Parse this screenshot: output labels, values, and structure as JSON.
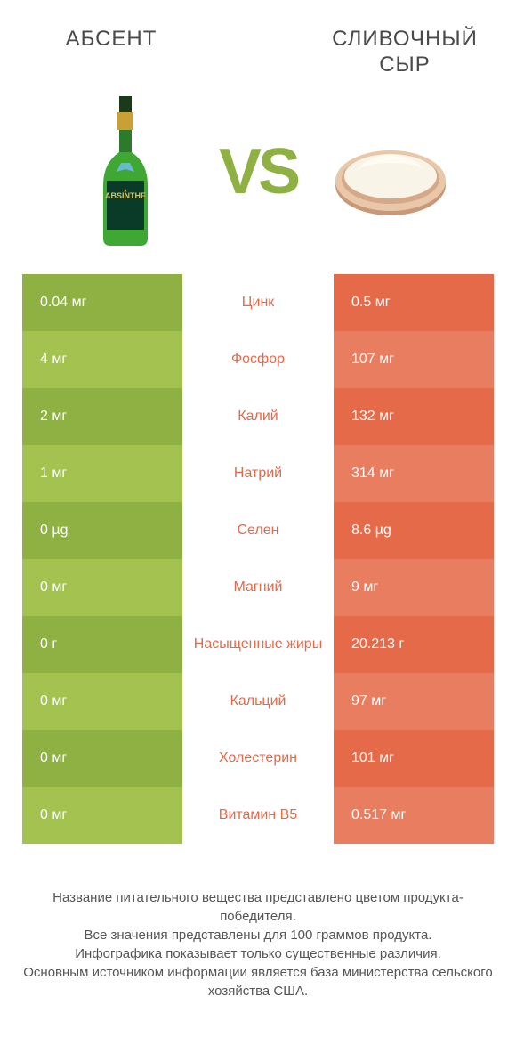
{
  "titles": {
    "left": "АБСЕНТ",
    "right": "СЛИВОЧНЫЙ СЫР"
  },
  "vs": "VS",
  "colors": {
    "leftDark": "#8fb043",
    "leftLight": "#a3c24f",
    "rightDark": "#e46a4a",
    "rightLight": "#e97d5f",
    "midText": "#8fb043"
  },
  "rows": [
    {
      "left": "0.04 мг",
      "mid": "Цинк",
      "right": "0.5 мг",
      "winner": "right"
    },
    {
      "left": "4 мг",
      "mid": "Фосфор",
      "right": "107 мг",
      "winner": "right"
    },
    {
      "left": "2 мг",
      "mid": "Калий",
      "right": "132 мг",
      "winner": "right"
    },
    {
      "left": "1 мг",
      "mid": "Натрий",
      "right": "314 мг",
      "winner": "right"
    },
    {
      "left": "0 µg",
      "mid": "Селен",
      "right": "8.6 µg",
      "winner": "right"
    },
    {
      "left": "0 мг",
      "mid": "Магний",
      "right": "9 мг",
      "winner": "right"
    },
    {
      "left": "0 г",
      "mid": "Насыщенные жиры",
      "right": "20.213 г",
      "winner": "right"
    },
    {
      "left": "0 мг",
      "mid": "Кальций",
      "right": "97 мг",
      "winner": "right"
    },
    {
      "left": "0 мг",
      "mid": "Холестерин",
      "right": "101 мг",
      "winner": "right"
    },
    {
      "left": "0 мг",
      "mid": "Витамин B5",
      "right": "0.517 мг",
      "winner": "right"
    }
  ],
  "footer": {
    "l1": "Название питательного вещества представлено цветом продукта-победителя.",
    "l2": "Все значения представлены для 100 граммов продукта.",
    "l3": "Инфографика показывает только существенные различия.",
    "l4": "Основным источником информации является база министерства сельского хозяйства США."
  }
}
